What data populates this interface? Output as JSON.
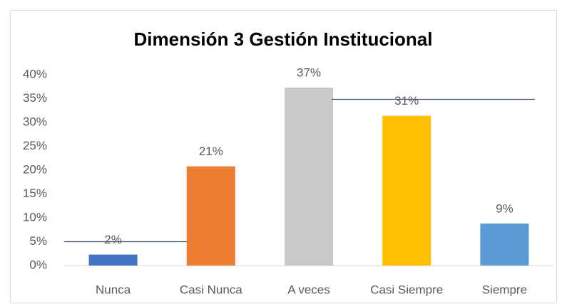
{
  "chart_data": {
    "type": "bar",
    "title": "Dimensión 3 Gestión Institucional",
    "categories": [
      "Nunca",
      "Casi Nunca",
      "A veces",
      "Casi Siempre",
      "Siempre"
    ],
    "values": [
      2.3,
      20.8,
      37.3,
      31.4,
      8.8
    ],
    "value_labels": [
      "2%",
      "21%",
      "37%",
      "31%",
      "9%"
    ],
    "colors": [
      "#4472c4",
      "#ed7d31",
      "#c9c9c9",
      "#ffc000",
      "#5b9bd5"
    ],
    "ylim": [
      0,
      40
    ],
    "yticks": [
      {
        "value": 0,
        "label": "0%"
      },
      {
        "value": 5,
        "label": "5%"
      },
      {
        "value": 10,
        "label": "10%"
      },
      {
        "value": 15,
        "label": "15%"
      },
      {
        "value": 20,
        "label": "20%"
      },
      {
        "value": 25,
        "label": "25%"
      },
      {
        "value": 30,
        "label": "30%"
      },
      {
        "value": 35,
        "label": "35%"
      },
      {
        "value": 40,
        "label": "40%"
      }
    ],
    "grid": false
  }
}
